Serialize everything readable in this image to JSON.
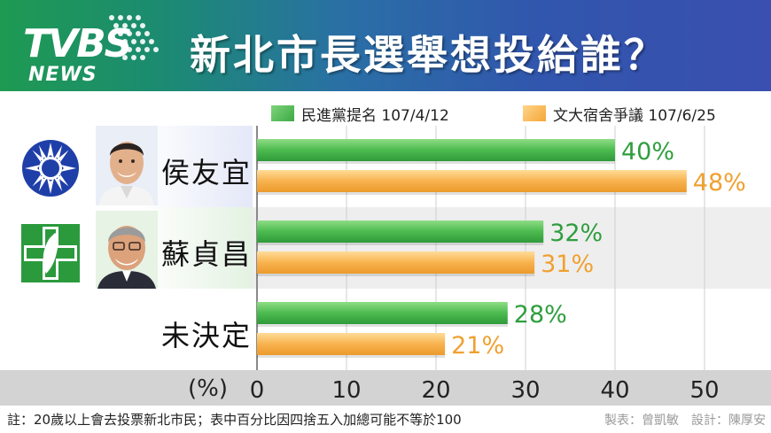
{
  "header": {
    "logo_main": "TVBS",
    "logo_sub": "NEWS",
    "title": "新北市長選舉想投給誰？"
  },
  "chart_data": {
    "type": "bar",
    "orientation": "horizontal",
    "title": "新北市長選舉想投給誰？",
    "categories": [
      "侯友宜",
      "蘇貞昌",
      "未決定"
    ],
    "series": [
      {
        "name": "民進黨提名 107/4/12",
        "values": [
          40,
          32,
          28
        ],
        "color": "#3aaa45"
      },
      {
        "name": "文大宿舍爭議 107/6/25",
        "values": [
          48,
          31,
          21
        ],
        "color": "#f5a638"
      }
    ],
    "value_labels": [
      [
        "40%",
        "32%",
        "28%"
      ],
      [
        "48%",
        "31%",
        "21%"
      ]
    ],
    "xlabel": "(%)",
    "xlim": [
      0,
      56
    ],
    "xticks": [
      0,
      10,
      20,
      30,
      40,
      50
    ],
    "grid": true,
    "legend_position": "top"
  },
  "candidates": [
    {
      "name": "侯友宜",
      "party_icon": "kmt-emblem-icon",
      "party_color": "#1f3fa8"
    },
    {
      "name": "蘇貞昌",
      "party_icon": "dpp-emblem-icon",
      "party_color": "#2b9a3c"
    },
    {
      "name": "未決定"
    }
  ],
  "footnote": "註：20歲以上會去投票新北市民；表中百分比因四捨五入加總可能不等於100",
  "credits": "製表：曾凱敏　設計：陳厚安"
}
